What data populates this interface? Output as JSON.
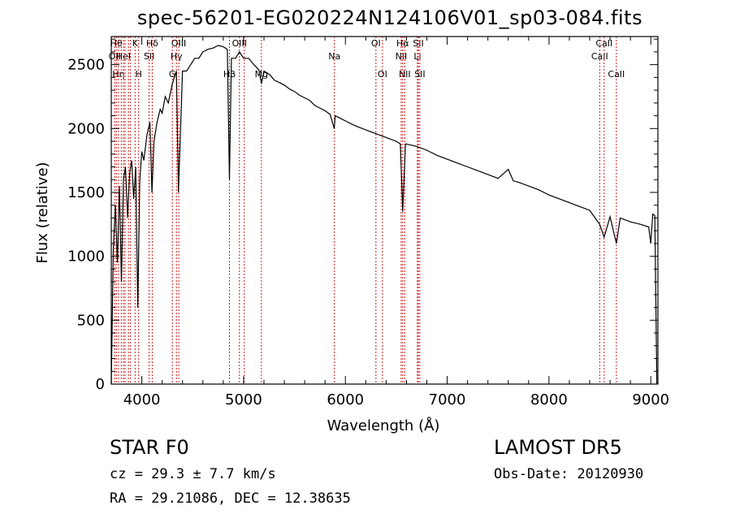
{
  "chart_data": {
    "type": "line",
    "title": "spec-56201-EG020224N124106V01_sp03-084.fits",
    "xlabel": "Wavelength (Å)",
    "ylabel": "Flux (relative)",
    "xlim": [
      3700,
      9070
    ],
    "ylim": [
      0,
      2720
    ],
    "xticks": [
      4000,
      5000,
      6000,
      7000,
      8000,
      9000
    ],
    "yticks": [
      0,
      500,
      1000,
      1500,
      2000,
      2500
    ],
    "grid": false,
    "line_color": "#000000",
    "marker_color": "#cc0000",
    "series": [
      {
        "x": [
          3700,
          3720,
          3740,
          3760,
          3780,
          3800,
          3820,
          3840,
          3860,
          3880,
          3900,
          3920,
          3940,
          3960,
          3980,
          4000,
          4020,
          4050,
          4080,
          4100,
          4120,
          4150,
          4180,
          4200,
          4230,
          4260,
          4300,
          4340,
          4360,
          4400,
          4440,
          4480,
          4520,
          4560,
          4600,
          4650,
          4700,
          4750,
          4800,
          4840,
          4861,
          4880,
          4920,
          4960,
          5000,
          5050,
          5100,
          5150,
          5175,
          5200,
          5260,
          5300,
          5350,
          5400,
          5450,
          5500,
          5550,
          5600,
          5650,
          5700,
          5750,
          5800,
          5850,
          5890,
          5900,
          5950,
          6000,
          6100,
          6200,
          6300,
          6400,
          6500,
          6540,
          6563,
          6590,
          6650,
          6700,
          6800,
          6900,
          7000,
          7100,
          7200,
          7300,
          7400,
          7500,
          7600,
          7650,
          7700,
          7800,
          7900,
          8000,
          8100,
          8200,
          8300,
          8400,
          8498,
          8542,
          8600,
          8662,
          8700,
          8800,
          8900,
          8980,
          9000,
          9020,
          9040,
          9060
        ],
        "y": [
          0,
          1050,
          1400,
          950,
          1550,
          800,
          1600,
          1700,
          1300,
          1650,
          1750,
          1450,
          1700,
          600,
          1600,
          1820,
          1750,
          1950,
          2050,
          1500,
          1900,
          2050,
          2150,
          2120,
          2250,
          2200,
          2350,
          2450,
          1500,
          2450,
          2450,
          2500,
          2550,
          2550,
          2600,
          2620,
          2630,
          2650,
          2640,
          2620,
          1600,
          2550,
          2550,
          2600,
          2550,
          2550,
          2500,
          2460,
          2350,
          2450,
          2420,
          2380,
          2360,
          2340,
          2310,
          2290,
          2260,
          2240,
          2220,
          2180,
          2160,
          2140,
          2110,
          2000,
          2100,
          2080,
          2060,
          2020,
          1990,
          1960,
          1930,
          1900,
          1880,
          1350,
          1880,
          1870,
          1860,
          1830,
          1790,
          1760,
          1730,
          1700,
          1670,
          1640,
          1610,
          1680,
          1590,
          1580,
          1550,
          1520,
          1480,
          1450,
          1420,
          1390,
          1360,
          1250,
          1150,
          1310,
          1100,
          1300,
          1270,
          1250,
          1230,
          1100,
          1330,
          1320,
          0
        ]
      }
    ],
    "line_markers": [
      {
        "wl": 3734,
        "label": "OII",
        "row": 2
      },
      {
        "wl": 3750,
        "label": "Hθ",
        "row": 1
      },
      {
        "wl": 3771,
        "label": "Hη",
        "row": 3
      },
      {
        "wl": 3798,
        "label": "",
        "row": 0
      },
      {
        "wl": 3820,
        "label": "HeI",
        "row": 2
      },
      {
        "wl": 3835,
        "label": "",
        "row": 0
      },
      {
        "wl": 3869,
        "label": "",
        "row": 0
      },
      {
        "wl": 3889,
        "label": "",
        "row": 0
      },
      {
        "wl": 3934,
        "label": "K",
        "row": 1
      },
      {
        "wl": 3969,
        "label": "H",
        "row": 3
      },
      {
        "wl": 4072,
        "label": "SII",
        "row": 2
      },
      {
        "wl": 4102,
        "label": "Hδ",
        "row": 1
      },
      {
        "wl": 4300,
        "label": "G",
        "row": 3
      },
      {
        "wl": 4340,
        "label": "Hγ",
        "row": 2
      },
      {
        "wl": 4363,
        "label": "OIII",
        "row": 1
      },
      {
        "wl": 4861,
        "label": "Hβ",
        "row": 3
      },
      {
        "wl": 4959,
        "label": "OIII",
        "row": 1
      },
      {
        "wl": 5007,
        "label": "",
        "row": 0
      },
      {
        "wl": 5175,
        "label": "Mg",
        "row": 3
      },
      {
        "wl": 5892,
        "label": "Na",
        "row": 2
      },
      {
        "wl": 6300,
        "label": "OI",
        "row": 1
      },
      {
        "wl": 6364,
        "label": "OI",
        "row": 3
      },
      {
        "wl": 6548,
        "label": "NII",
        "row": 2
      },
      {
        "wl": 6563,
        "label": "Hα",
        "row": 1
      },
      {
        "wl": 6583,
        "label": "NII",
        "row": 3
      },
      {
        "wl": 6708,
        "label": "Li",
        "row": 2
      },
      {
        "wl": 6716,
        "label": "SII",
        "row": 1
      },
      {
        "wl": 6731,
        "label": "SII",
        "row": 3
      },
      {
        "wl": 8498,
        "label": "CaII",
        "row": 2
      },
      {
        "wl": 8542,
        "label": "CaII",
        "row": 1
      },
      {
        "wl": 8662,
        "label": "CaII",
        "row": 3
      }
    ]
  },
  "info": {
    "object_class": "STAR     F0",
    "survey": "LAMOST  DR5",
    "redshift": "cz = 29.3 ± 7.7 km/s",
    "obs_date": "Obs-Date: 20120930",
    "coordinates": "RA =  29.21086, DEC =  12.38635"
  }
}
